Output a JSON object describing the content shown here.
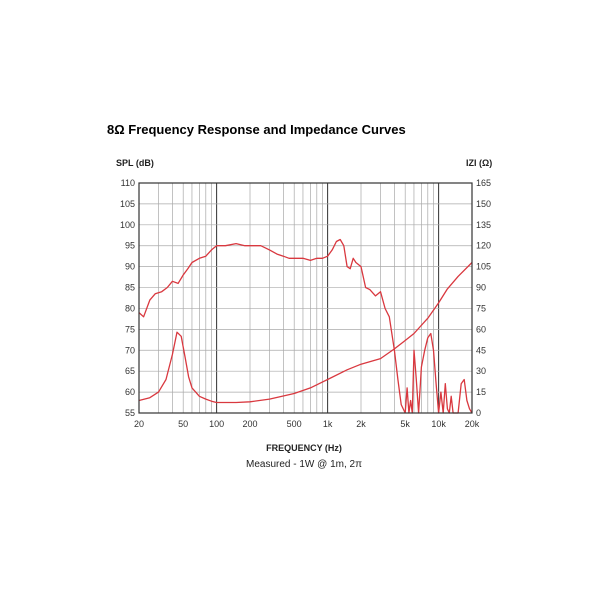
{
  "title": "8Ω Frequency Response and Impedance Curves",
  "chart_data": {
    "type": "line",
    "x_scale": "log",
    "xlim": [
      20,
      20000
    ],
    "grid": true,
    "y_left": {
      "label": "SPL (dB)",
      "range": [
        55,
        110
      ],
      "ticks": [
        "110",
        "105",
        "100",
        "95",
        "90",
        "85",
        "80",
        "75",
        "70",
        "65",
        "60",
        "55"
      ]
    },
    "y_right": {
      "label": "IZI (Ω)",
      "range": [
        0,
        165
      ],
      "ticks": [
        "165",
        "150",
        "135",
        "120",
        "105",
        "90",
        "75",
        "60",
        "45",
        "30",
        "15",
        "0"
      ]
    },
    "x_tick_values": [
      20,
      50,
      100,
      200,
      500,
      1000,
      2000,
      5000,
      10000,
      20000
    ],
    "x_ticks": [
      "20",
      "50",
      "100",
      "200",
      "500",
      "1k",
      "2k",
      "5k",
      "10k",
      "20k"
    ],
    "xlabel": "FREQUENCY (Hz)",
    "subtitle": "Measured - 1W @ 1m, 2π",
    "line_color": "#d9383f",
    "series": [
      {
        "axis": "left",
        "x": [
          20,
          22,
          25,
          28,
          32,
          36,
          40,
          45,
          50,
          55,
          60,
          70,
          80,
          90,
          100,
          120,
          150,
          180,
          200,
          250,
          300,
          350,
          400,
          450,
          500,
          600,
          700,
          800,
          900,
          1000,
          1100,
          1200,
          1300,
          1400,
          1500,
          1600,
          1700,
          1800,
          2000,
          2200,
          2400,
          2700,
          3000,
          3300,
          3600,
          4000,
          4300,
          4600,
          5000
        ],
        "y": [
          79,
          78,
          82,
          83.5,
          84,
          85,
          86.5,
          86,
          88,
          89.5,
          91,
          92,
          92.5,
          94,
          95,
          95,
          95.5,
          95,
          95,
          95,
          94,
          93,
          92.5,
          92,
          92,
          92,
          91.5,
          92,
          92,
          92.5,
          94,
          96,
          96.5,
          95,
          90,
          89.5,
          92,
          91,
          90,
          85,
          84.5,
          83,
          84,
          80,
          78,
          70,
          63,
          57,
          55
        ]
      },
      {
        "axis": "left",
        "x": [
          5000,
          5200,
          5400,
          5600,
          5800,
          6000,
          6300,
          6600,
          7000,
          7500,
          8000,
          8500,
          9000,
          9500,
          10000,
          10500,
          11000,
          11500,
          12000,
          12500,
          13000,
          13500,
          14000,
          15000,
          16000,
          17000,
          18000,
          19000,
          20000
        ],
        "y": [
          55,
          61,
          55,
          58,
          55,
          70,
          63,
          55,
          66,
          70,
          73,
          74,
          70,
          62,
          55,
          60,
          55,
          62,
          56,
          55,
          59,
          55,
          55,
          55,
          62,
          63,
          58,
          56,
          55
        ]
      },
      {
        "axis": "right",
        "x": [
          20,
          25,
          30,
          35,
          40,
          44,
          48,
          52,
          56,
          60,
          70,
          80,
          90,
          100,
          150,
          200,
          300,
          500,
          700,
          1000,
          1500,
          2000,
          3000,
          4000,
          5000,
          6000,
          8000,
          10000,
          12000,
          15000,
          20000
        ],
        "y": [
          9,
          11,
          15,
          24,
          42,
          58,
          55,
          40,
          26,
          18,
          12,
          10,
          8.5,
          7.5,
          7.5,
          8,
          10,
          14,
          18,
          24,
          31,
          35,
          39,
          46,
          52,
          57,
          68,
          79,
          89,
          98,
          108
        ]
      }
    ]
  }
}
